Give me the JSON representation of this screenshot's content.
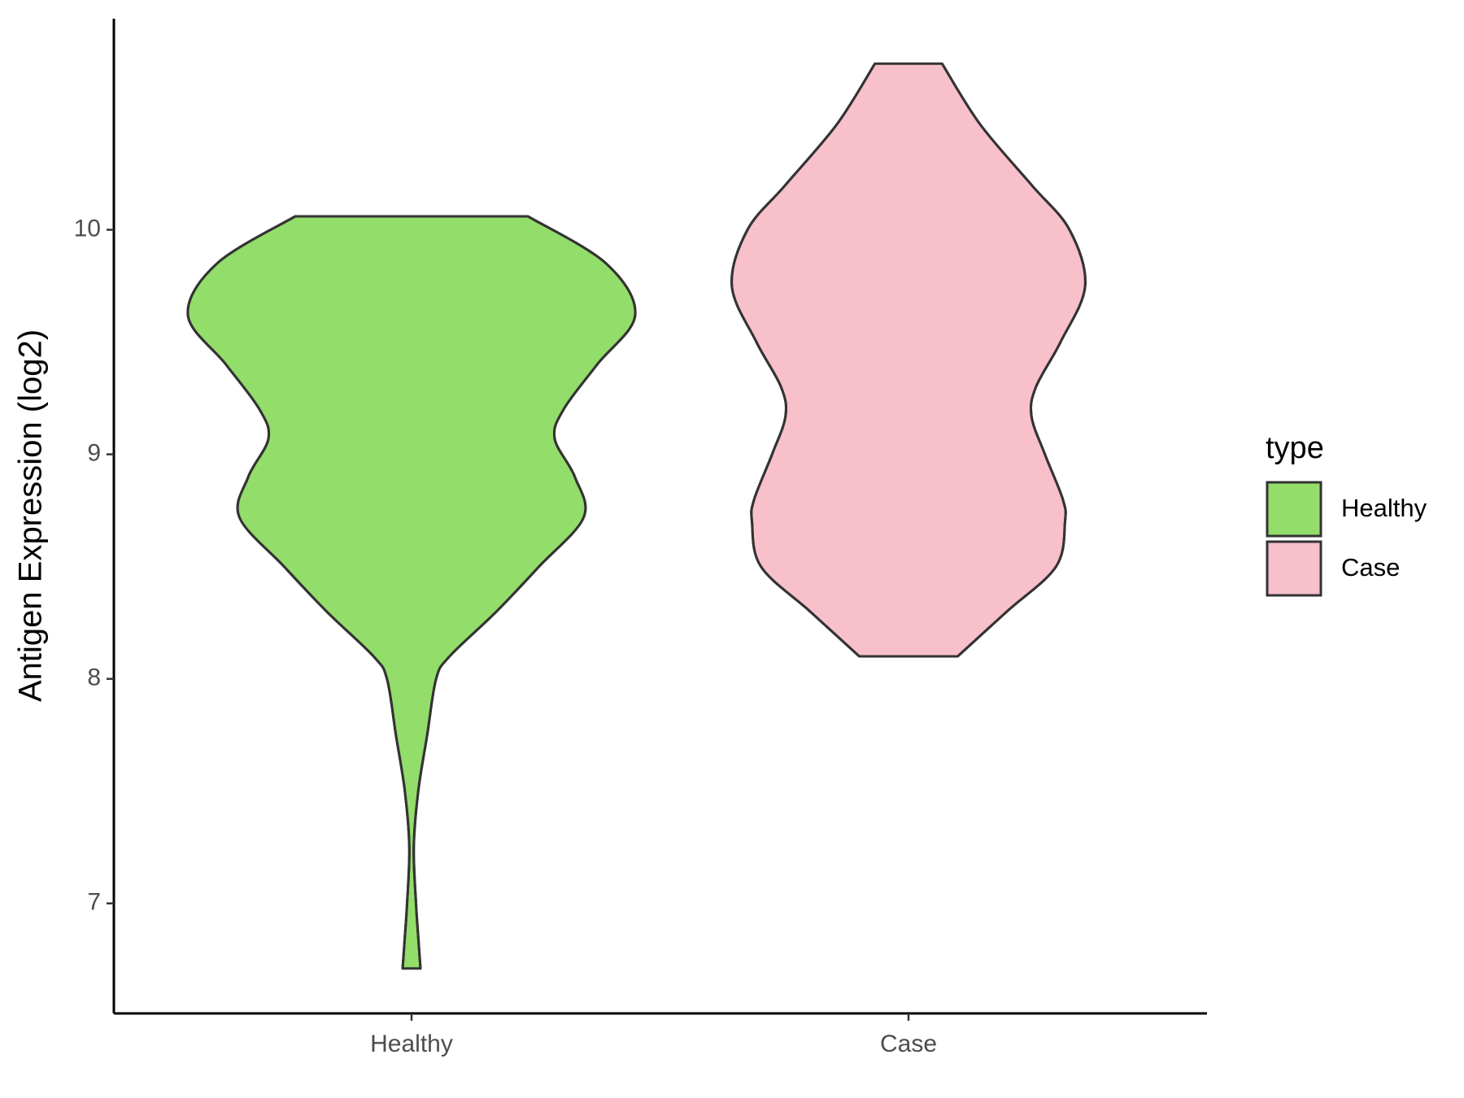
{
  "chart_data": {
    "type": "violin",
    "y_label": "Antigen Expression (log2)",
    "categories": [
      "Healthy",
      "Case"
    ],
    "ylim": [
      6.51,
      10.94
    ],
    "yticks": [
      7,
      8,
      9,
      10
    ],
    "legend_title": "type",
    "legend_position": "right",
    "series": [
      {
        "name": "Healthy",
        "color": "#93dd6a",
        "y": [
          6.71,
          6.85,
          7.0,
          7.25,
          7.5,
          7.75,
          8.0,
          8.1,
          8.3,
          8.5,
          8.72,
          8.9,
          9.07,
          9.2,
          9.4,
          9.62,
          9.85,
          10.06
        ],
        "density": [
          0.04,
          0.03,
          0.02,
          0.01,
          0.03,
          0.07,
          0.11,
          0.17,
          0.38,
          0.57,
          0.77,
          0.73,
          0.64,
          0.68,
          0.83,
          1.0,
          0.87,
          0.52
        ]
      },
      {
        "name": "Case",
        "color": "#f7c0cb",
        "y": [
          8.1,
          8.3,
          8.5,
          8.7,
          8.8,
          9.0,
          9.17,
          9.3,
          9.5,
          9.75,
          10.0,
          10.2,
          10.47,
          10.74
        ],
        "density": [
          0.22,
          0.44,
          0.66,
          0.7,
          0.69,
          0.61,
          0.55,
          0.57,
          0.68,
          0.79,
          0.72,
          0.55,
          0.32,
          0.15
        ]
      }
    ]
  }
}
